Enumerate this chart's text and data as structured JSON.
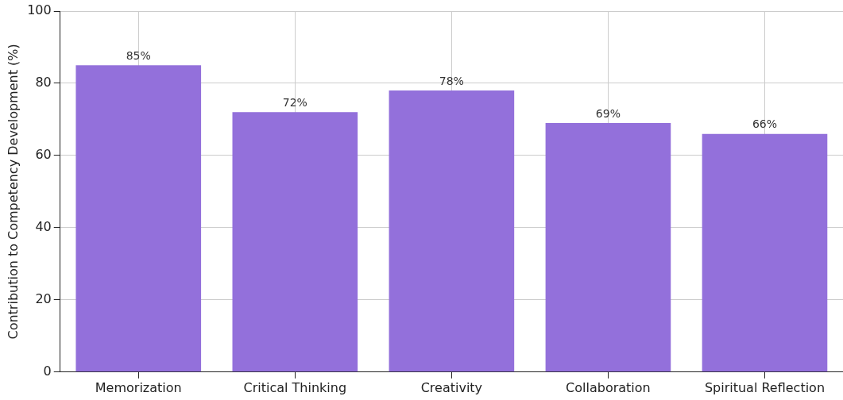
{
  "chart_data": {
    "type": "bar",
    "ylabel": "Contribution to Competency Development (%)",
    "categories": [
      "Memorization",
      "Critical Thinking",
      "Creativity",
      "Collaboration",
      "Spiritual Reflection"
    ],
    "values": [
      85,
      72,
      78,
      69,
      66
    ],
    "value_labels": [
      "85%",
      "72%",
      "78%",
      "69%",
      "66%"
    ],
    "color": "#9370db",
    "ylim": [
      0,
      100
    ],
    "yticks": [
      0,
      20,
      40,
      60,
      80,
      100
    ],
    "grid": true
  }
}
